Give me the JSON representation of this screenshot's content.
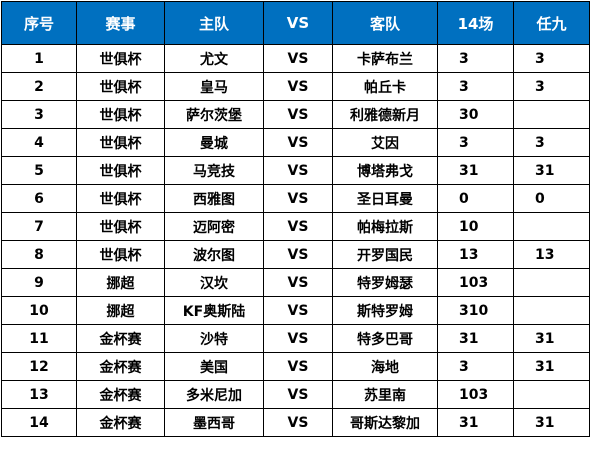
{
  "table": {
    "headers": {
      "no": "序号",
      "competition": "赛事",
      "home": "主队",
      "vs": "VS",
      "away": "客队",
      "fourteen": "14场",
      "renjiu": "任九"
    },
    "header_bg": "#0070c0",
    "rows": [
      {
        "no": "1",
        "competition": "世俱杯",
        "home": "尤文",
        "vs": "VS",
        "away": "卡萨布兰",
        "fourteen": "3",
        "renjiu": "3"
      },
      {
        "no": "2",
        "competition": "世俱杯",
        "home": "皇马",
        "vs": "VS",
        "away": "帕丘卡",
        "fourteen": "3",
        "renjiu": "3"
      },
      {
        "no": "3",
        "competition": "世俱杯",
        "home": "萨尔茨堡",
        "vs": "VS",
        "away": "利雅德新月",
        "fourteen": "30",
        "renjiu": ""
      },
      {
        "no": "4",
        "competition": "世俱杯",
        "home": "曼城",
        "vs": "VS",
        "away": "艾因",
        "fourteen": "3",
        "renjiu": "3"
      },
      {
        "no": "5",
        "competition": "世俱杯",
        "home": "马竞技",
        "vs": "VS",
        "away": "博塔弗戈",
        "fourteen": "31",
        "renjiu": "31"
      },
      {
        "no": "6",
        "competition": "世俱杯",
        "home": "西雅图",
        "vs": "VS",
        "away": "圣日耳曼",
        "fourteen": "0",
        "renjiu": "0"
      },
      {
        "no": "7",
        "competition": "世俱杯",
        "home": "迈阿密",
        "vs": "VS",
        "away": "帕梅拉斯",
        "fourteen": "10",
        "renjiu": ""
      },
      {
        "no": "8",
        "competition": "世俱杯",
        "home": "波尔图",
        "vs": "VS",
        "away": "开罗国民",
        "fourteen": "13",
        "renjiu": "13"
      },
      {
        "no": "9",
        "competition": "挪超",
        "home": "汉坎",
        "vs": "VS",
        "away": "特罗姆瑟",
        "fourteen": "103",
        "renjiu": ""
      },
      {
        "no": "10",
        "competition": "挪超",
        "home": "KF奥斯陆",
        "vs": "VS",
        "away": "斯特罗姆",
        "fourteen": "310",
        "renjiu": ""
      },
      {
        "no": "11",
        "competition": "金杯赛",
        "home": "沙特",
        "vs": "VS",
        "away": "特多巴哥",
        "fourteen": "31",
        "renjiu": "31"
      },
      {
        "no": "12",
        "competition": "金杯赛",
        "home": "美国",
        "vs": "VS",
        "away": "海地",
        "fourteen": "3",
        "renjiu": "31"
      },
      {
        "no": "13",
        "competition": "金杯赛",
        "home": "多米尼加",
        "vs": "VS",
        "away": "苏里南",
        "fourteen": "103",
        "renjiu": ""
      },
      {
        "no": "14",
        "competition": "金杯赛",
        "home": "墨西哥",
        "vs": "VS",
        "away": "哥斯达黎加",
        "fourteen": "31",
        "renjiu": "31"
      }
    ]
  }
}
